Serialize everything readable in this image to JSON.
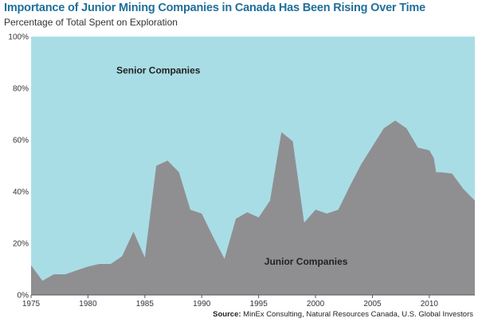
{
  "header": {
    "title": "Importance of Junior Mining Companies in Canada Has Been Rising Over Time",
    "subtitle": "Percentage of Total Spent on Exploration"
  },
  "footer": {
    "source_label": "Source:",
    "source_text": "MinEx Consulting, Natural Resources Canada, U.S. Global Investors"
  },
  "colors": {
    "senior": "#a9dde6",
    "junior": "#8f8f92",
    "title": "#1f6f9a"
  },
  "chart_data": {
    "type": "area",
    "title": "Importance of Junior Mining Companies in Canada Has Been Rising Over Time",
    "subtitle": "Percentage of Total Spent on Exploration",
    "xlim": [
      1975,
      2014
    ],
    "ylim": [
      0,
      100
    ],
    "x_ticks": [
      1975,
      1980,
      1985,
      1990,
      1995,
      2000,
      2005,
      2010
    ],
    "y_ticks": [
      0,
      20,
      40,
      60,
      80,
      100
    ],
    "y_tick_labels": [
      "0%",
      "20%",
      "40%",
      "60%",
      "80%",
      "100%"
    ],
    "grid": false,
    "legend": "none",
    "annotations": [
      {
        "text": "Senior Companies",
        "x": 1982.5,
        "y": 87,
        "series": "senior"
      },
      {
        "text": "Junior Companies",
        "x": 1995.5,
        "y": 13,
        "series": "junior"
      }
    ],
    "x": [
      1975,
      1976,
      1977,
      1978,
      1979,
      1980,
      1981,
      1981.5,
      1982,
      1983,
      1984,
      1985,
      1986,
      1987,
      1988,
      1989,
      1990,
      1991,
      1992,
      1993,
      1994,
      1995,
      1996,
      1997,
      1998,
      1999,
      2000,
      2001,
      2002,
      2003,
      2004,
      2005,
      2006,
      2007,
      2008,
      2009,
      2010,
      2010.4,
      2010.6,
      2011,
      2012,
      2013,
      2014
    ],
    "series": [
      {
        "key": "junior",
        "values": [
          11.5,
          5.5,
          8,
          8,
          9.5,
          11,
          12,
          12,
          12,
          15,
          24.5,
          14.5,
          50,
          52,
          47.5,
          33,
          31.5,
          22.5,
          14,
          29.5,
          32,
          30,
          36.5,
          63,
          59.5,
          28,
          33,
          31.5,
          33,
          42,
          50.5,
          57.5,
          64.5,
          67.5,
          64.5,
          57,
          56,
          53,
          47.5,
          47.5,
          47,
          41,
          36.5
        ]
      }
    ]
  }
}
